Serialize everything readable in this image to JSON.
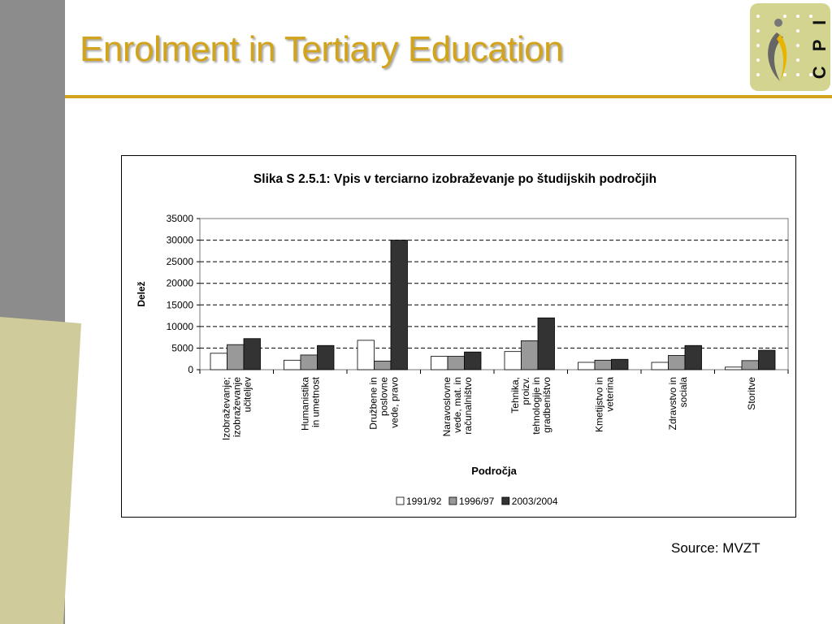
{
  "slide": {
    "title": "Enrolment in Tertiary Education",
    "source": "Source: MVZT",
    "accent_color": "#d2a41c",
    "logo_text": "C P I"
  },
  "chart_data": {
    "type": "bar",
    "title": "Slika S 2.5.1: Vpis v terciarno izobraževanje po študijskih področjih",
    "xlabel": "Področja",
    "ylabel": "Delež",
    "ylim": [
      0,
      35000
    ],
    "yticks": [
      0,
      5000,
      10000,
      15000,
      20000,
      25000,
      30000,
      35000
    ],
    "grid": "dashed-horizontal",
    "legend_position": "bottom",
    "categories": [
      [
        "Izobraževanje;",
        "izobraževanje",
        "učiteljev"
      ],
      [
        "Humanistika",
        "in umetnost"
      ],
      [
        "Družbene in",
        "poslovne",
        "vede, pravo"
      ],
      [
        "Naravoslovne",
        "vede, mat. in",
        "računalništvo"
      ],
      [
        "Tehnika,",
        "proizv.",
        "tehnologije in",
        "gradbeništvo"
      ],
      [
        "Kmetijstvo in",
        "veterina"
      ],
      [
        "Zdravstvo in",
        "sociala"
      ],
      [
        "Storitve"
      ]
    ],
    "series": [
      {
        "name": "1991/92",
        "color": "#ffffff",
        "values": [
          3800,
          2200,
          6800,
          3100,
          4200,
          1700,
          1700,
          600
        ]
      },
      {
        "name": "1996/97",
        "color": "#999999",
        "values": [
          5800,
          3400,
          2000,
          3100,
          6700,
          2200,
          3300,
          2100
        ]
      },
      {
        "name": "2003/2004",
        "color": "#333333",
        "values": [
          7200,
          5600,
          30000,
          4100,
          12000,
          2400,
          5600,
          4500
        ]
      }
    ]
  }
}
